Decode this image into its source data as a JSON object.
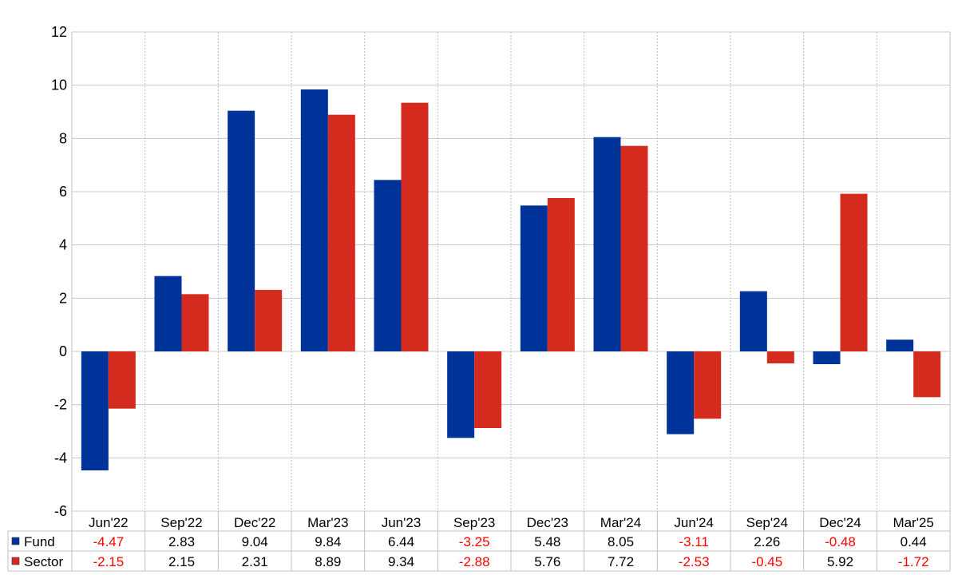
{
  "chart_data": {
    "type": "bar",
    "categories": [
      "Jun'22",
      "Sep'22",
      "Dec'22",
      "Mar'23",
      "Jun'23",
      "Sep'23",
      "Dec'23",
      "Mar'24",
      "Jun'24",
      "Sep'24",
      "Dec'24",
      "Mar'25"
    ],
    "series": [
      {
        "name": "Fund",
        "color": "#003399",
        "values": [
          -4.47,
          2.83,
          9.04,
          9.84,
          6.44,
          -3.25,
          5.48,
          8.05,
          -3.11,
          2.26,
          -0.48,
          0.44
        ]
      },
      {
        "name": "Sector",
        "color": "#d52b1e",
        "values": [
          -2.15,
          2.15,
          2.31,
          8.89,
          9.34,
          -2.88,
          5.76,
          7.72,
          -2.53,
          -0.45,
          5.92,
          -1.72
        ]
      }
    ],
    "ylim": [
      -6,
      12
    ],
    "yticks": [
      -6,
      -4,
      -2,
      0,
      2,
      4,
      6,
      8,
      10,
      12
    ],
    "ytick_labels": [
      "-6",
      "-4",
      "-2",
      "0",
      "2",
      "4",
      "6",
      "8",
      "10",
      "12"
    ],
    "grid": true,
    "legend": "data-table-left",
    "negative_color": "#ff0000",
    "positive_color": "#000000",
    "title": "",
    "xlabel": "",
    "ylabel": ""
  }
}
